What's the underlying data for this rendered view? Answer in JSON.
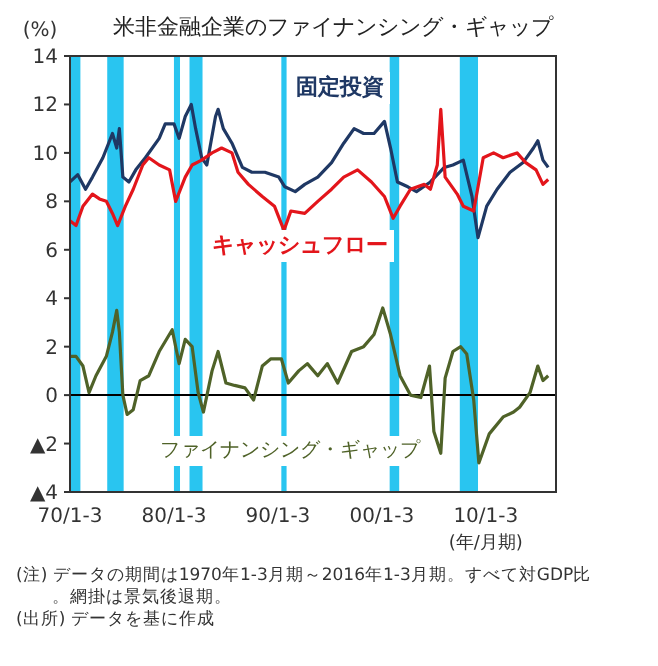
{
  "chart_data": {
    "type": "line",
    "title": "米非金融企業のファイナンシング・ギャップ",
    "ylabel": "(%)",
    "xlabel": "(年/月期)",
    "xlim": [
      "1970-01",
      "2016-10"
    ],
    "xticks": [
      {
        "value": "1970-01",
        "label": "70/1-3"
      },
      {
        "value": "1980-01",
        "label": "80/1-3"
      },
      {
        "value": "1990-01",
        "label": "90/1-3"
      },
      {
        "value": "2000-01",
        "label": "00/1-3"
      },
      {
        "value": "2010-01",
        "label": "10/1-3"
      }
    ],
    "ylim": [
      -4,
      14
    ],
    "yticks": [
      {
        "value": -4,
        "label": "▲4"
      },
      {
        "value": -2,
        "label": "▲2"
      },
      0,
      2,
      4,
      6,
      8,
      10,
      12,
      14
    ],
    "grid": false,
    "legend": false,
    "marker": "none",
    "line_style": "solid",
    "series": [
      {
        "name": "固定投資",
        "color": "#1f3864",
        "x": [
          "1970-01",
          "1970-10",
          "1971-07",
          "1972-03",
          "1973-03",
          "1974-02",
          "1974-07",
          "1974-10",
          "1975-02",
          "1975-09",
          "1976-05",
          "1977-04",
          "1978-08",
          "1979-03",
          "1980-01",
          "1980-07",
          "1981-02",
          "1981-09",
          "1982-02",
          "1982-09",
          "1983-03",
          "1984-01",
          "1984-04",
          "1984-10",
          "1985-08",
          "1986-08",
          "1987-07",
          "1988-10",
          "1990-02",
          "1990-09",
          "1991-09",
          "1992-08",
          "1993-11",
          "1995-03",
          "1996-05",
          "1997-05",
          "1998-04",
          "1999-04",
          "2000-04",
          "2000-11",
          "2001-07",
          "2002-07",
          "2003-05",
          "2004-09",
          "2006-01",
          "2006-11",
          "2007-11",
          "2008-09",
          "2009-04",
          "2010-02",
          "2011-02",
          "2012-05",
          "2013-08",
          "2014-08",
          "2015-01",
          "2015-07",
          "2016-01"
        ],
        "values": [
          8.8,
          9.1,
          8.5,
          9.0,
          9.8,
          10.8,
          10.2,
          11.0,
          9.0,
          8.8,
          9.3,
          9.8,
          10.6,
          11.2,
          11.2,
          10.6,
          11.5,
          12.0,
          11.0,
          9.8,
          9.5,
          11.5,
          11.8,
          11.0,
          10.4,
          9.4,
          9.2,
          9.2,
          9.0,
          8.6,
          8.4,
          8.7,
          9.0,
          9.6,
          10.4,
          11.0,
          10.8,
          10.8,
          11.3,
          10.2,
          8.8,
          8.6,
          8.4,
          8.8,
          9.4,
          9.5,
          9.7,
          8.2,
          6.5,
          7.8,
          8.5,
          9.2,
          9.6,
          10.2,
          10.5,
          9.7,
          9.4
        ]
      },
      {
        "name": "キャッシュフロー",
        "color": "#e3151b",
        "x": [
          "1970-01",
          "1970-08",
          "1971-04",
          "1972-03",
          "1972-11",
          "1973-07",
          "1974-02",
          "1974-08",
          "1975-05",
          "1976-02",
          "1977-01",
          "1977-08",
          "1978-08",
          "1979-08",
          "1980-03",
          "1981-02",
          "1981-10",
          "1982-09",
          "1983-09",
          "1984-08",
          "1985-08",
          "1986-03",
          "1987-03",
          "1988-07",
          "1989-09",
          "1990-08",
          "1991-04",
          "1992-08",
          "1993-11",
          "1995-03",
          "1996-05",
          "1997-09",
          "1999-01",
          "2000-04",
          "2001-02",
          "2001-10",
          "2002-10",
          "2004-02",
          "2004-09",
          "2005-05",
          "2005-09",
          "2006-02",
          "2007-04",
          "2007-11",
          "2008-11",
          "2009-10",
          "2010-10",
          "2011-09",
          "2013-01",
          "2013-11",
          "2014-11",
          "2015-07",
          "2016-01"
        ],
        "values": [
          7.2,
          7.0,
          7.8,
          8.3,
          8.1,
          8.0,
          7.5,
          7.0,
          7.8,
          8.5,
          9.5,
          9.8,
          9.5,
          9.3,
          8.0,
          9.0,
          9.5,
          9.7,
          10.0,
          10.2,
          10.0,
          9.2,
          8.7,
          8.2,
          7.8,
          6.8,
          7.6,
          7.5,
          8.0,
          8.5,
          9.0,
          9.3,
          8.8,
          8.2,
          7.3,
          7.8,
          8.5,
          8.7,
          8.5,
          9.5,
          11.8,
          9.0,
          8.3,
          7.8,
          7.6,
          9.8,
          10.0,
          9.8,
          10.0,
          9.6,
          9.3,
          8.7,
          8.9
        ]
      },
      {
        "name": "ファイナンシング・ギャップ",
        "color": "#4f6228",
        "x": [
          "1970-01",
          "1970-08",
          "1971-04",
          "1971-11",
          "1972-07",
          "1973-07",
          "1974-02",
          "1974-07",
          "1974-10",
          "1975-02",
          "1975-07",
          "1976-02",
          "1976-10",
          "1977-08",
          "1978-08",
          "1979-11",
          "1980-07",
          "1981-02",
          "1981-10",
          "1982-05",
          "1982-11",
          "1983-09",
          "1984-04",
          "1985-01",
          "1985-11",
          "1986-11",
          "1987-09",
          "1988-07",
          "1989-05",
          "1990-05",
          "1991-01",
          "1992-01",
          "1992-11",
          "1993-11",
          "1994-10",
          "1995-10",
          "1997-02",
          "1998-04",
          "1999-04",
          "2000-02",
          "2000-11",
          "2001-10",
          "2002-10",
          "2003-10",
          "2004-08",
          "2005-01",
          "2005-09",
          "2006-02",
          "2006-11",
          "2007-08",
          "2008-03",
          "2008-11",
          "2009-05",
          "2010-05",
          "2011-09",
          "2012-09",
          "2013-04",
          "2014-04",
          "2015-01",
          "2015-07",
          "2016-01"
        ],
        "values": [
          1.6,
          1.6,
          1.2,
          0.1,
          0.8,
          1.6,
          2.6,
          3.5,
          2.6,
          0.0,
          -0.8,
          -0.6,
          0.6,
          0.8,
          1.8,
          2.7,
          1.3,
          2.3,
          2.0,
          0.1,
          -0.7,
          1.0,
          1.8,
          0.5,
          0.4,
          0.3,
          -0.2,
          1.2,
          1.5,
          1.5,
          0.5,
          1.0,
          1.3,
          0.8,
          1.3,
          0.5,
          1.8,
          2.0,
          2.5,
          3.6,
          2.5,
          0.8,
          0.0,
          -0.1,
          1.2,
          -1.5,
          -2.4,
          0.7,
          1.8,
          2.0,
          1.7,
          -0.2,
          -2.8,
          -1.6,
          -0.9,
          -0.7,
          -0.5,
          0.1,
          1.2,
          0.6,
          0.8
        ]
      }
    ],
    "bands": [
      {
        "axis": "x",
        "from": "1970-01",
        "to": "1971-01",
        "color": "#29c5f0"
      },
      {
        "axis": "x",
        "from": "1973-08",
        "to": "1975-03",
        "color": "#29c5f0"
      },
      {
        "axis": "x",
        "from": "1980-01",
        "to": "1980-08",
        "color": "#29c5f0"
      },
      {
        "axis": "x",
        "from": "1981-07",
        "to": "1982-10",
        "color": "#29c5f0"
      },
      {
        "axis": "x",
        "from": "1990-05",
        "to": "1990-11",
        "color": "#29c5f0"
      },
      {
        "axis": "x",
        "from": "2000-10",
        "to": "2001-09",
        "color": "#29c5f0"
      },
      {
        "axis": "x",
        "from": "2007-07",
        "to": "2009-04",
        "color": "#29c5f0"
      }
    ],
    "ref_lines": [
      {
        "axis": "y",
        "value": 0,
        "color": "#000000"
      }
    ],
    "annotations": [
      "(注) データの期間は1970年1-3月期～2016年1-3月期。すべて対GDP比。網掛は景気後退期。",
      "(出所) データを基に作成"
    ]
  }
}
